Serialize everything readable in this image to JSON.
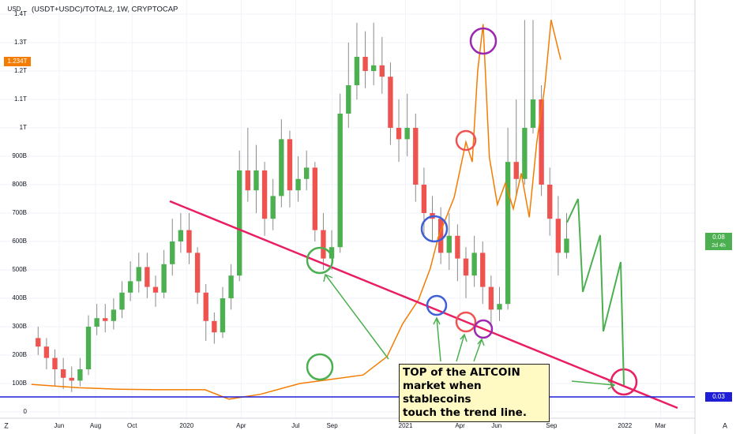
{
  "chart_data": {
    "type": "candlestick",
    "title": "(USDT+USDC)/TOTAL2, 1W, CRYPTOCAP",
    "x": [
      -5,
      -3,
      -1,
      1,
      3,
      5,
      7,
      9,
      11,
      13,
      15,
      17,
      19,
      21,
      23,
      25,
      27,
      29,
      31,
      33,
      35,
      37,
      39,
      41,
      43,
      45,
      47,
      49,
      51,
      53,
      55,
      57,
      59,
      61,
      63,
      65,
      67,
      69,
      71,
      73,
      75,
      77,
      79,
      81,
      83,
      85,
      87,
      89,
      91,
      93,
      95,
      97,
      99,
      101,
      103,
      105,
      107,
      109,
      111,
      113,
      115,
      117,
      119,
      121
    ],
    "open": [
      260,
      230,
      190,
      150,
      120,
      110,
      150,
      300,
      330,
      320,
      360,
      420,
      460,
      510,
      440,
      420,
      520,
      600,
      640,
      560,
      420,
      320,
      280,
      400,
      480,
      850,
      780,
      850,
      680,
      760,
      960,
      780,
      820,
      860,
      640,
      540,
      580,
      1050,
      1150,
      1250,
      1200,
      1220,
      1180,
      1000,
      960,
      1000,
      800,
      700,
      680,
      560,
      620,
      540,
      480,
      560,
      440,
      360,
      380,
      880,
      820,
      1000,
      1100,
      800,
      680,
      560
    ],
    "high": [
      300,
      260,
      220,
      190,
      160,
      190,
      340,
      380,
      380,
      400,
      460,
      530,
      560,
      560,
      480,
      570,
      680,
      700,
      700,
      580,
      450,
      350,
      440,
      520,
      920,
      1000,
      940,
      880,
      820,
      1030,
      990,
      900,
      920,
      880,
      700,
      640,
      1120,
      1300,
      1370,
      1340,
      1370,
      1320,
      1230,
      1100,
      1120,
      1050,
      860,
      760,
      720,
      700,
      660,
      580,
      620,
      600,
      480,
      440,
      1000,
      1100,
      1380,
      1380,
      1150,
      860,
      760,
      700
    ],
    "low": [
      200,
      150,
      90,
      80,
      70,
      90,
      130,
      270,
      280,
      290,
      330,
      390,
      420,
      400,
      370,
      400,
      480,
      560,
      520,
      380,
      250,
      240,
      260,
      360,
      460,
      740,
      700,
      620,
      640,
      720,
      720,
      740,
      780,
      600,
      500,
      500,
      560,
      1000,
      1100,
      1140,
      1150,
      1120,
      940,
      880,
      900,
      740,
      620,
      600,
      520,
      500,
      460,
      400,
      440,
      380,
      300,
      320,
      360,
      760,
      800,
      980,
      760,
      620,
      480,
      540
    ],
    "close": [
      230,
      190,
      150,
      120,
      110,
      150,
      300,
      330,
      320,
      360,
      420,
      460,
      510,
      440,
      420,
      520,
      600,
      640,
      560,
      420,
      320,
      280,
      400,
      480,
      850,
      780,
      850,
      680,
      760,
      960,
      780,
      820,
      860,
      640,
      540,
      580,
      1050,
      1150,
      1250,
      1200,
      1220,
      1180,
      1000,
      960,
      1000,
      800,
      700,
      680,
      560,
      620,
      540,
      480,
      560,
      440,
      360,
      380,
      880,
      820,
      1000,
      1100,
      800,
      680,
      560,
      610
    ],
    "up_color": "#4caf50",
    "down_color": "#ef5350",
    "overlay": {
      "type": "line",
      "color": "#f57c00",
      "x": [
        -6.6,
        4.7,
        14.1,
        23.5,
        34.8,
        40.5,
        48.0,
        57.4,
        65.0,
        72.5,
        78.2,
        81.9,
        85.7,
        88.5,
        90.4,
        94.2,
        97.0,
        98.5,
        99.8,
        101.1,
        102.6,
        104.5,
        106.4,
        108.3,
        110.2,
        112.1,
        113.9,
        115.8,
        117.3,
        119.6
      ],
      "values": [
        97,
        85,
        80,
        78,
        78,
        45,
        62,
        100,
        115,
        130,
        195,
        310,
        395,
        505,
        615,
        755,
        950,
        880,
        1200,
        1365,
        895,
        730,
        805,
        715,
        840,
        685,
        950,
        1145,
        1380,
        1240
      ]
    },
    "xlim": [
      -7.5,
      151.6
    ],
    "ylim": [
      0,
      1400
    ],
    "yticks": [
      0,
      {
        "value": 100,
        "label": "100B"
      },
      {
        "value": 200,
        "label": "200B"
      },
      {
        "value": 300,
        "label": "300B"
      },
      {
        "value": 400,
        "label": "400B"
      },
      {
        "value": 500,
        "label": "500B"
      },
      {
        "value": 600,
        "label": "600B"
      },
      {
        "value": 700,
        "label": "700B"
      },
      {
        "value": 800,
        "label": "800B"
      },
      {
        "value": 900,
        "label": "900B"
      },
      {
        "value": 1000,
        "label": "1T"
      },
      {
        "value": 1100,
        "label": "1.1T"
      },
      {
        "value": 1200,
        "label": "1.2T"
      },
      {
        "value": 1300,
        "label": "1.3T"
      },
      {
        "value": 1400,
        "label": "1.4T"
      }
    ],
    "xticks": [
      {
        "value": 0,
        "label": "Jun"
      },
      {
        "value": 8.7,
        "label": "Aug"
      },
      {
        "value": 17.4,
        "label": "Oct"
      },
      {
        "value": 30.4,
        "label": "2020"
      },
      {
        "value": 43.4,
        "label": "Apr"
      },
      {
        "value": 56.4,
        "label": "Jul"
      },
      {
        "value": 65.1,
        "label": "Sep"
      },
      {
        "value": 82.6,
        "label": "2021"
      },
      {
        "value": 95.6,
        "label": "Apr"
      },
      {
        "value": 104.3,
        "label": "Jun"
      },
      {
        "value": 117.4,
        "label": "Sep"
      },
      {
        "value": 134.9,
        "label": "2022"
      },
      {
        "value": 143.4,
        "label": "Mar"
      }
    ],
    "grid": true,
    "annotation": [
      "TOP of the ALTCOIN",
      "market when stablecoins",
      "touch the trend line."
    ]
  },
  "ui": {
    "currency": "USD",
    "left_price": "1.234T",
    "last_price": "0.08",
    "countdown": "2d 4h",
    "line_price": "0.03",
    "zoom": "Z",
    "auto": "A"
  }
}
